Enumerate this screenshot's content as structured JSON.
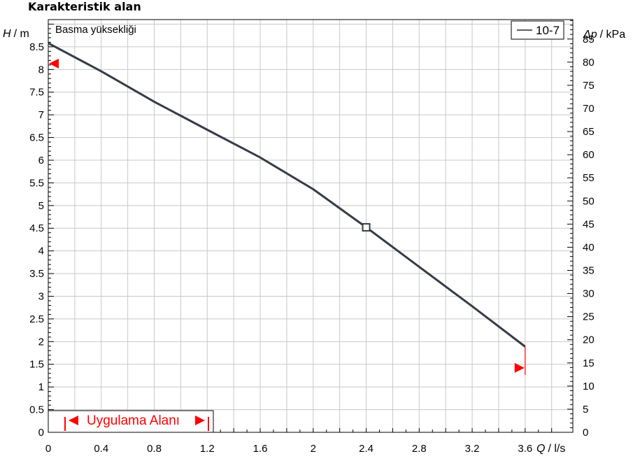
{
  "chart_data": {
    "type": "line",
    "title": "Karakteristik alan",
    "subtitle": "Basma yüksekliği",
    "y_left_symbol": "H",
    "y_left_unit": "/ m",
    "y_right_symbol": "Δp",
    "y_right_unit": "/ kPa",
    "x_symbol": "Q",
    "x_unit": "/ l/s",
    "xlim": [
      0,
      3.96
    ],
    "ylim": [
      0,
      9.1
    ],
    "y_right_lim": [
      0,
      89.2
    ],
    "x_ticks": [
      "0",
      "0.4",
      "0.8",
      "1.2",
      "1.6",
      "2",
      "2.4",
      "2.8",
      "3.2",
      "3.6"
    ],
    "y_left_ticks": [
      "0",
      "0.5",
      "1",
      "1.5",
      "2",
      "2.5",
      "3",
      "3.5",
      "4",
      "4.5",
      "5",
      "5.5",
      "6",
      "6.5",
      "7",
      "7.5",
      "8",
      "8.5"
    ],
    "y_right_ticks": [
      "0",
      "5",
      "10",
      "15",
      "20",
      "25",
      "30",
      "35",
      "40",
      "45",
      "50",
      "55",
      "60",
      "65",
      "70",
      "75",
      "80",
      "85"
    ],
    "grid": true,
    "legend": "top-right",
    "series": [
      {
        "name": "10-7",
        "color": "#353c45",
        "x": [
          0,
          0.4,
          0.8,
          1.2,
          1.6,
          2.0,
          2.4,
          2.8,
          3.2,
          3.6
        ],
        "y": [
          8.58,
          7.96,
          7.29,
          6.67,
          6.06,
          5.36,
          4.52,
          3.65,
          2.78,
          1.89
        ]
      }
    ],
    "operating_point": {
      "x": 2.4,
      "y": 4.52
    },
    "range_markers": {
      "h_max": 8.13,
      "h_min": 1.42,
      "q_max": 3.6,
      "color": "#ff0000"
    },
    "application_area": {
      "label": "Uygulama Alanı",
      "q_min": 0.13,
      "q_max": 1.22,
      "color": "#ff0000"
    }
  }
}
